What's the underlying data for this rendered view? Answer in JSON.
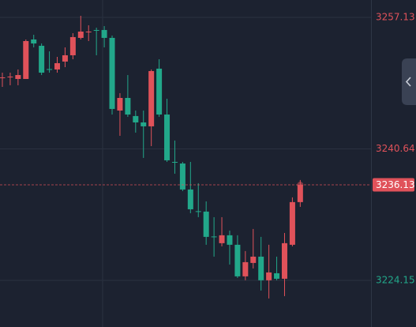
{
  "chart_data": {
    "type": "candlestick",
    "open": [
      3249.51,
      3249.61,
      3249.41,
      3249.41,
      3254.36,
      3253.57,
      3250.65,
      3250.6,
      3251.59,
      3252.38,
      3254.56,
      3255.3,
      3255.55,
      3255.55,
      3254.56,
      3245.45,
      3247.03,
      3244.76,
      3243.96,
      3243.47,
      3250.7,
      3244.95,
      3239.01,
      3238.81,
      3235.55,
      3232.83,
      3232.78,
      3229.66,
      3228.82,
      3229.81,
      3228.62,
      3224.66,
      3226.34,
      3227.13,
      3224.17,
      3225.05,
      3224.36,
      3228.62,
      3233.97
    ],
    "high": [
      3250.2,
      3250.2,
      3250.6,
      3254.36,
      3254.95,
      3253.86,
      3252.87,
      3252.18,
      3253.37,
      3255.15,
      3257.33,
      3256.14,
      3255.84,
      3256.04,
      3254.85,
      3247.63,
      3249.9,
      3245.45,
      3245.45,
      3250.6,
      3251.88,
      3246.93,
      3241.69,
      3239.01,
      3239.01,
      3236.34,
      3234.06,
      3232.08,
      3232.08,
      3230.4,
      3229.81,
      3227.83,
      3230.6,
      3229.61,
      3228.62,
      3227.13,
      3230.1,
      3234.56,
      3236.74
    ],
    "low": [
      3248.42,
      3248.62,
      3248.62,
      3249.41,
      3253.37,
      3249.9,
      3250.2,
      3250.2,
      3250.89,
      3251.88,
      3254.36,
      3254.16,
      3252.38,
      3253.37,
      3244.95,
      3242.28,
      3244.66,
      3242.68,
      3239.51,
      3240.99,
      3244.66,
      3239.01,
      3237.53,
      3235.35,
      3232.58,
      3232.08,
      3228.62,
      3227.13,
      3228.42,
      3226.14,
      3224.46,
      3224.17,
      3225.65,
      3222.88,
      3221.89,
      3224.17,
      3222.18,
      3228.42,
      3233.37
    ],
    "close": [
      3249.61,
      3249.71,
      3249.9,
      3254.16,
      3253.86,
      3250.2,
      3250.6,
      3251.39,
      3252.38,
      3254.66,
      3255.35,
      3255.35,
      3255.45,
      3254.56,
      3245.65,
      3247.03,
      3244.95,
      3243.96,
      3243.47,
      3250.4,
      3244.95,
      3239.21,
      3238.91,
      3235.55,
      3233.07,
      3232.78,
      3229.61,
      3229.61,
      3229.81,
      3228.62,
      3224.66,
      3226.44,
      3227.13,
      3224.17,
      3225.15,
      3224.36,
      3228.82,
      3233.97,
      3236.13
    ],
    "up_color": "#e0525a",
    "down_color": "#22a88a",
    "ylim": [
      3218.31,
      3259.31
    ],
    "yticks": [
      3224.15,
      3240.64,
      3257.13
    ],
    "last_price": 3236.13,
    "grid": true
  }
}
